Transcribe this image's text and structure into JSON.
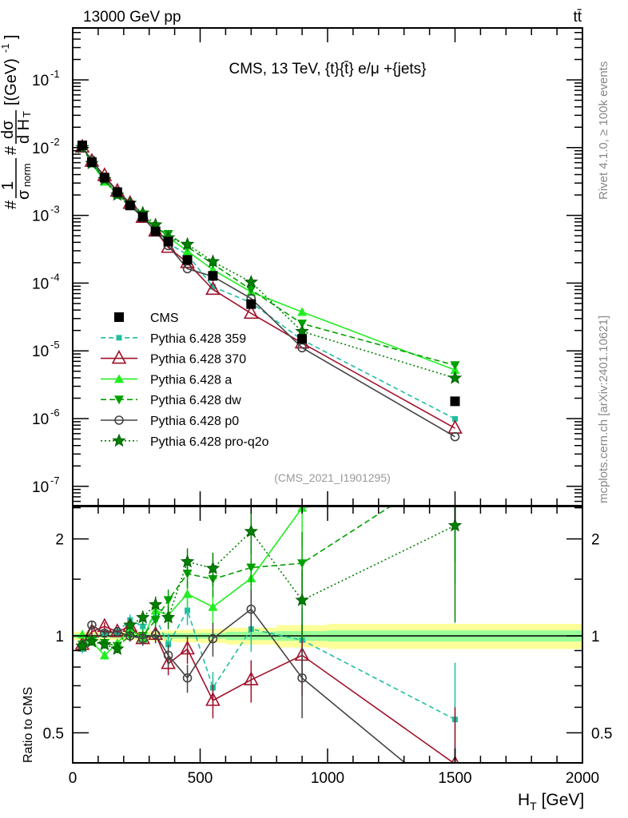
{
  "header": {
    "energy": "13000 GeV pp",
    "process": "tt̄"
  },
  "side_labels": {
    "rivet": "Rivet 4.1.0, ≥ 100k events",
    "mcplots": "mcplots.cern.ch [arXiv:2401.10621]"
  },
  "chart_data": {
    "type": "line",
    "title": "CMS, 13 TeV, {t}{t̄} e/μ +{jets}",
    "analysis": "(CMS_2021_I1901295)",
    "xlabel": "H_T [GeV]",
    "xlabel_main": "H",
    "xlabel_sub": "T",
    "xlabel_unit": " [GeV]",
    "ylabel_parts": {
      "a": "#",
      "b": "1",
      "c": "σ",
      "d": "norm",
      "e": "#",
      "f": "dσ",
      "g": "d H",
      "h": "T",
      "i": "[(GeV)",
      "j": "-1",
      "k": "]"
    },
    "ratio_ylabel": "Ratio to CMS",
    "xlim": [
      0,
      2000
    ],
    "ylim_main": [
      5.4e-08,
      0.59
    ],
    "ylim_ratio": [
      0.4,
      2.52
    ],
    "yscale": "log",
    "x_ticks": [
      "0",
      "500",
      "1000",
      "1500",
      "2000"
    ],
    "x_tick_values": [
      0,
      500,
      1000,
      1500,
      2000
    ],
    "y_ticks_main": [
      {
        "base": "10",
        "exp": "-1",
        "value": 0.1
      },
      {
        "base": "10",
        "exp": "-2",
        "value": 0.01
      },
      {
        "base": "10",
        "exp": "-3",
        "value": 0.001
      },
      {
        "base": "10",
        "exp": "-4",
        "value": 0.0001
      },
      {
        "base": "10",
        "exp": "-5",
        "value": 1e-05
      },
      {
        "base": "10",
        "exp": "-6",
        "value": 1e-06
      },
      {
        "base": "10",
        "exp": "-7",
        "value": 1e-07
      }
    ],
    "y_ticks_ratio": [
      {
        "label": "0.5",
        "value": 0.5
      },
      {
        "label": "1",
        "value": 1
      },
      {
        "label": "2",
        "value": 2
      }
    ],
    "x": [
      37.5,
      75,
      125,
      175,
      225,
      275,
      325,
      375,
      450,
      550,
      700,
      900,
      1500
    ],
    "band_edges": [
      0,
      50,
      100,
      150,
      200,
      250,
      300,
      350,
      400,
      500,
      600,
      800,
      1000,
      2000
    ],
    "band_inner": [
      0.015,
      0.015,
      0.015,
      0.015,
      0.015,
      0.015,
      0.015,
      0.02,
      0.02,
      0.02,
      0.03,
      0.035,
      0.04
    ],
    "band_outer": [
      0.03,
      0.03,
      0.03,
      0.03,
      0.03,
      0.03,
      0.035,
      0.04,
      0.045,
      0.05,
      0.06,
      0.08,
      0.09
    ],
    "data": {
      "name": "CMS",
      "values": [
        0.0108,
        0.0061,
        0.0036,
        0.0022,
        0.0014,
        0.00095,
        0.00058,
        0.00041,
        0.00022,
        0.000128,
        4.9e-05,
        1.5e-05,
        1.8e-06
      ]
    },
    "mc_rel_err": [
      0.03,
      0.03,
      0.03,
      0.03,
      0.04,
      0.05,
      0.06,
      0.08,
      0.1,
      0.12,
      0.15,
      0.25,
      0.5
    ],
    "series": [
      {
        "name": "Pythia 6.428 359",
        "color": "#1fbf9f",
        "dash": "6,4",
        "marker": "square",
        "ratio": [
          0.91,
          0.97,
          1.02,
          1.03,
          1.12,
          1.07,
          1.14,
          0.94,
          1.2,
          0.69,
          1.05,
          0.97,
          0.55
        ]
      },
      {
        "name": "Pythia 6.428 370",
        "color": "#a0102a",
        "dash": "",
        "marker": "open-triangle",
        "ratio": [
          0.94,
          1.03,
          1.07,
          1.03,
          1.07,
          0.98,
          1.01,
          0.82,
          0.91,
          0.63,
          0.73,
          0.87,
          0.4
        ]
      },
      {
        "name": "Pythia 6.428 a",
        "color": "#22ee22",
        "dash": "",
        "marker": "triangle",
        "ratio": [
          1.01,
          0.96,
          0.87,
          0.95,
          1.05,
          0.98,
          1.2,
          1.16,
          1.35,
          1.23,
          1.51,
          2.5,
          2.9
        ]
      },
      {
        "name": "Pythia 6.428 dw",
        "color": "#00a000",
        "dash": "7,4",
        "marker": "down-triangle",
        "ratio": [
          0.94,
          0.97,
          0.95,
          0.93,
          1.0,
          1.0,
          1.12,
          1.29,
          1.56,
          1.5,
          1.63,
          1.68,
          3.4
        ]
      },
      {
        "name": "Pythia 6.428 p0",
        "color": "#444444",
        "dash": "",
        "marker": "open-circle",
        "ratio": [
          0.93,
          1.08,
          1.02,
          1.03,
          1.0,
          0.98,
          1.01,
          0.87,
          0.74,
          0.98,
          1.21,
          0.74,
          0.3
        ]
      },
      {
        "name": "Pythia 6.428 pro-q2o",
        "color": "#008000",
        "dash": "2,3",
        "marker": "star",
        "ratio": [
          0.93,
          0.96,
          0.94,
          0.91,
          1.08,
          1.14,
          1.25,
          1.14,
          1.7,
          1.62,
          2.11,
          1.29,
          2.2
        ]
      }
    ],
    "legend_placement": "middle-left"
  }
}
